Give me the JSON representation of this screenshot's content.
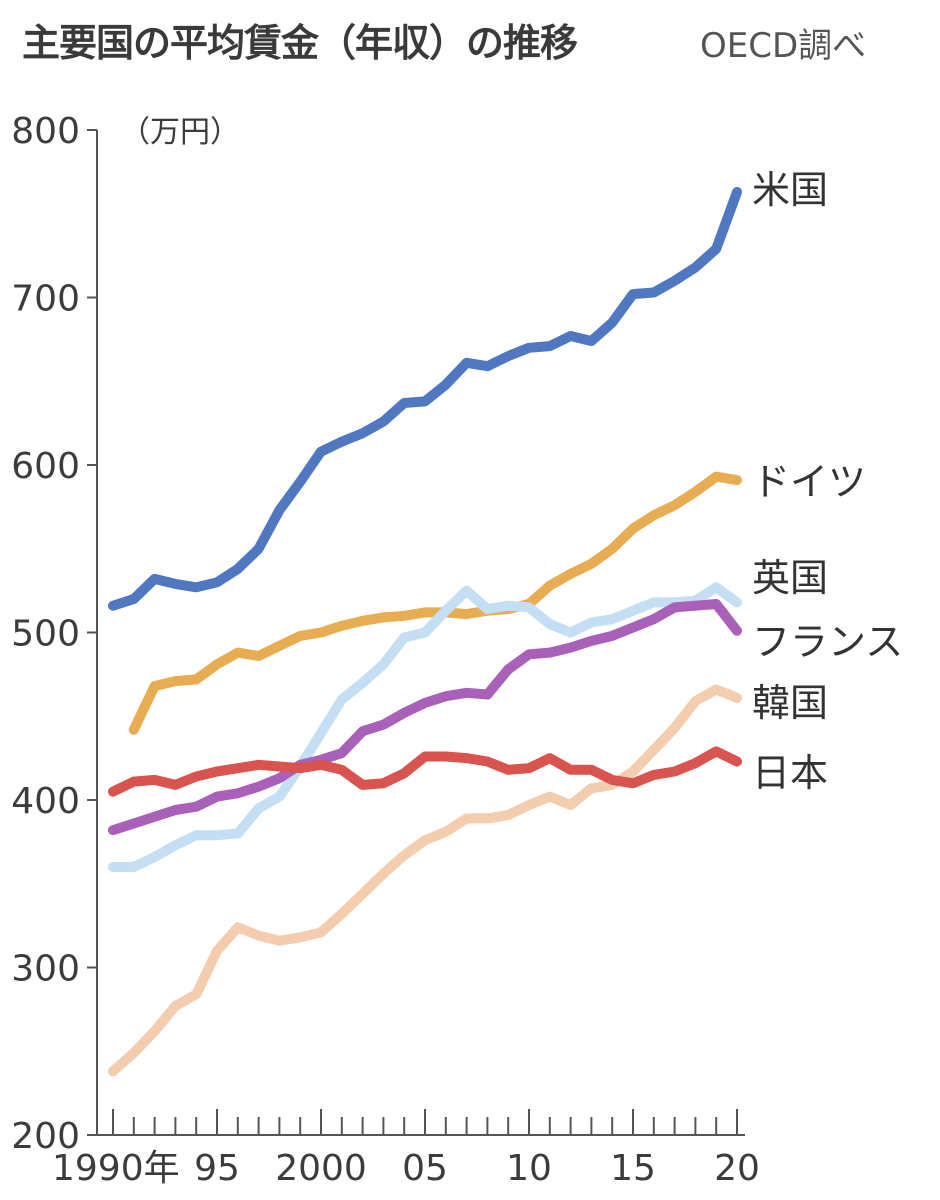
{
  "header": {
    "title": "主要国の平均賃金（年収）の推移",
    "source": "OECD調べ"
  },
  "colors": {
    "axis": "#555555",
    "text": "#3c3c3c"
  },
  "chart_data": {
    "type": "line",
    "title": "主要国の平均賃金（年収）の推移",
    "ylabel": "（万円）",
    "xlabel": "",
    "xlim": [
      1990,
      2020
    ],
    "ylim": [
      200,
      800
    ],
    "yticks": [
      200,
      300,
      400,
      500,
      600,
      700,
      800
    ],
    "xtick_labels": [
      {
        "x": 1990,
        "label": "1990年"
      },
      {
        "x": 1995,
        "label": "95"
      },
      {
        "x": 2000,
        "label": "2000"
      },
      {
        "x": 2005,
        "label": "05"
      },
      {
        "x": 2010,
        "label": "10"
      },
      {
        "x": 2015,
        "label": "15"
      },
      {
        "x": 2020,
        "label": "20"
      }
    ],
    "grid": false,
    "legend": "labels at line ends",
    "series": [
      {
        "name": "米国",
        "color": "#4f78c0",
        "start": 1990,
        "values": [
          516,
          520,
          532,
          529,
          527,
          530,
          538,
          550,
          573,
          590,
          608,
          614,
          619,
          626,
          637,
          638,
          648,
          661,
          659,
          665,
          670,
          671,
          677,
          674,
          685,
          702,
          703,
          710,
          718,
          729,
          763
        ]
      },
      {
        "name": "ドイツ",
        "color": "#e8ad52",
        "start": 1991,
        "values": [
          442,
          468,
          471,
          472,
          481,
          488,
          486,
          492,
          498,
          500,
          504,
          507,
          509,
          510,
          512,
          512,
          511,
          513,
          514,
          517,
          528,
          535,
          541,
          550,
          562,
          570,
          576,
          584,
          593,
          591
        ]
      },
      {
        "name": "英国",
        "color": "#c4def4",
        "start": 1990,
        "values": [
          360,
          360,
          366,
          373,
          379,
          379,
          380,
          395,
          402,
          420,
          440,
          460,
          470,
          481,
          497,
          500,
          513,
          525,
          514,
          516,
          515,
          505,
          500,
          506,
          508,
          513,
          518,
          518,
          519,
          527,
          518
        ]
      },
      {
        "name": "フランス",
        "color": "#a860b8",
        "start": 1990,
        "values": [
          382,
          386,
          390,
          394,
          396,
          402,
          404,
          408,
          413,
          421,
          424,
          428,
          441,
          445,
          452,
          458,
          462,
          464,
          463,
          478,
          487,
          488,
          491,
          495,
          498,
          503,
          508,
          515,
          516,
          517,
          501
        ]
      },
      {
        "name": "韓国",
        "color": "#f3cdae",
        "start": 1990,
        "values": [
          238,
          249,
          262,
          277,
          284,
          310,
          324,
          319,
          316,
          318,
          321,
          332,
          344,
          356,
          367,
          376,
          381,
          389,
          389,
          391,
          397,
          402,
          397,
          407,
          409,
          417,
          430,
          443,
          459,
          466,
          461
        ]
      },
      {
        "name": "日本",
        "color": "#d9534f",
        "start": 1990,
        "values": [
          405,
          411,
          412,
          409,
          414,
          417,
          419,
          421,
          420,
          419,
          421,
          418,
          409,
          410,
          416,
          426,
          426,
          425,
          423,
          418,
          419,
          425,
          418,
          418,
          412,
          410,
          415,
          417,
          422,
          429,
          423
        ]
      }
    ],
    "series_label_order": [
      "米国",
      "ドイツ",
      "英国",
      "フランス",
      "韓国",
      "日本"
    ]
  }
}
